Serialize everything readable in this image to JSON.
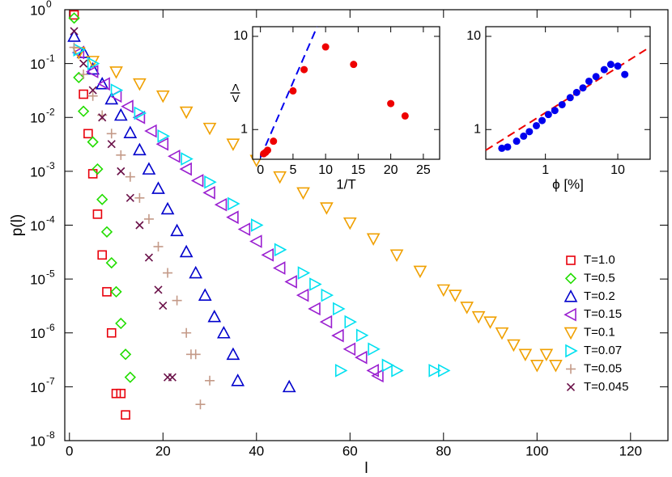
{
  "chart_data": [
    {
      "type": "scatter",
      "xlabel": "l",
      "ylabel": "p(l)",
      "xlim": [
        -1,
        128
      ],
      "ylim": [
        1e-08,
        1
      ],
      "ylog": true,
      "legend": "lower right",
      "xticks": [
        0,
        20,
        40,
        60,
        80,
        100,
        120
      ],
      "yticks": [
        {
          "value": 1,
          "label": "10",
          "power": "0"
        },
        {
          "value": 0.1,
          "label": "10",
          "power": "-1"
        },
        {
          "value": 0.01,
          "label": "10",
          "power": "-2"
        },
        {
          "value": 0.001,
          "label": "10",
          "power": "-3"
        },
        {
          "value": 0.0001,
          "label": "10",
          "power": "-4"
        },
        {
          "value": 1e-05,
          "label": "10",
          "power": "-5"
        },
        {
          "value": 1e-06,
          "label": "10",
          "power": "-6"
        },
        {
          "value": 1e-07,
          "label": "10",
          "power": "-7"
        },
        {
          "value": 1e-08,
          "label": "10",
          "power": "-8"
        }
      ],
      "series": [
        {
          "name": "T=1.0",
          "color": "#e8000b",
          "marker": "square",
          "x": [
            1,
            3,
            4,
            5,
            6,
            7,
            8,
            9,
            10,
            11,
            12
          ],
          "values": [
            0.8,
            0.027,
            0.005,
            0.0009,
            0.00016,
            2.8e-05,
            5.8e-06,
            1e-06,
            7.5e-08,
            7.5e-08,
            3e-08
          ]
        },
        {
          "name": "T=0.5",
          "color": "#22dd00",
          "marker": "diamond",
          "x": [
            1,
            2,
            3,
            5,
            6,
            7,
            8,
            9,
            10,
            11,
            12,
            13
          ],
          "values": [
            0.7,
            0.055,
            0.013,
            0.0035,
            0.0011,
            0.0003,
            7.5e-05,
            2e-05,
            5.8e-06,
            1.5e-06,
            4e-07,
            1.5e-07
          ]
        },
        {
          "name": "T=0.2",
          "color": "#0000cc",
          "marker": "up",
          "x": [
            1,
            3,
            5,
            7,
            9,
            11,
            13,
            15,
            17,
            19,
            21,
            23,
            25,
            27,
            29,
            31,
            33,
            35,
            36,
            47
          ],
          "values": [
            0.32,
            0.16,
            0.079,
            0.042,
            0.022,
            0.011,
            0.0052,
            0.0025,
            0.0011,
            0.00048,
            0.0002,
            7.9e-05,
            3.2e-05,
            1.3e-05,
            5e-06,
            2e-06,
            1e-06,
            4e-07,
            1.3e-07,
            1e-07
          ]
        },
        {
          "name": "T=0.15",
          "color": "#9a1fd0",
          "marker": "left",
          "x": [
            2,
            5,
            7.5,
            10,
            12.5,
            15,
            17.5,
            20,
            22.5,
            25,
            27.5,
            30,
            32.5,
            35,
            37.5,
            40,
            42.5,
            45,
            47.5,
            50,
            52.5,
            55,
            57.5,
            60,
            62.5,
            65,
            66
          ],
          "values": [
            0.16,
            0.071,
            0.042,
            0.025,
            0.016,
            0.01,
            0.0056,
            0.0032,
            0.0019,
            0.0011,
            0.00067,
            0.0004,
            0.00024,
            0.00014,
            8.4e-05,
            5e-05,
            2.8e-05,
            1.6e-05,
            8.9e-06,
            5e-06,
            2.8e-06,
            1.6e-06,
            8.9e-07,
            5e-07,
            3.5e-07,
            2e-07,
            1.6e-07
          ]
        },
        {
          "name": "T=0.1",
          "color": "#f0a000",
          "marker": "down",
          "x": [
            2,
            5,
            10,
            15,
            20,
            25,
            30,
            35,
            40,
            45,
            50,
            55,
            60,
            65,
            70,
            75,
            80,
            82.5,
            85,
            87.5,
            90,
            92.5,
            95,
            97.5,
            100,
            102,
            104
          ],
          "values": [
            0.16,
            0.11,
            0.07,
            0.042,
            0.025,
            0.0126,
            0.0063,
            0.0032,
            0.0016,
            0.00079,
            0.0004,
            0.00021,
            0.00011,
            5.6e-05,
            2.8e-05,
            1.4e-05,
            6.3e-06,
            5e-06,
            3e-06,
            2e-06,
            1.6e-06,
            1e-06,
            6e-07,
            4e-07,
            2.5e-07,
            4e-07,
            2.5e-07
          ]
        },
        {
          "name": "T=0.07",
          "color": "#00e0f0",
          "marker": "right",
          "x": [
            2,
            5,
            10,
            15,
            20,
            25,
            30,
            35,
            40,
            45,
            50,
            52.5,
            55,
            57.5,
            60,
            62.5,
            65,
            68,
            58,
            70,
            78,
            80
          ],
          "values": [
            0.18,
            0.1,
            0.032,
            0.012,
            0.0045,
            0.0017,
            0.00063,
            0.00025,
            0.0001,
            3.5e-05,
            1.3e-05,
            8e-06,
            5e-06,
            2.8e-06,
            1.6e-06,
            9e-07,
            5e-07,
            2.5e-07,
            2e-07,
            2e-07,
            2e-07,
            2e-07
          ]
        },
        {
          "name": "T=0.05",
          "color": "#c49a88",
          "marker": "plus",
          "x": [
            1,
            3,
            5,
            7,
            9,
            11,
            13,
            15,
            17,
            19,
            21,
            23,
            25,
            26,
            27,
            28,
            30
          ],
          "values": [
            0.2,
            0.063,
            0.025,
            0.011,
            0.005,
            0.002,
            0.00079,
            0.00032,
            0.00013,
            4e-05,
            1.3e-05,
            4e-06,
            1e-06,
            4e-07,
            4e-07,
            4.7e-08,
            1.3e-07
          ]
        },
        {
          "name": "T=0.045",
          "color": "#6a1048",
          "marker": "cross",
          "x": [
            1,
            3,
            5,
            7,
            9,
            11,
            13,
            15,
            17,
            19,
            20,
            21,
            22
          ],
          "values": [
            0.4,
            0.1,
            0.032,
            0.01,
            0.0032,
            0.001,
            0.00032,
            0.0001,
            2.5e-05,
            6.3e-06,
            3.2e-06,
            1.5e-07,
            1.5e-07
          ]
        }
      ]
    },
    {
      "type": "scatter",
      "xlabel": "1/T",
      "ylabel": "<l>",
      "xlim": [
        -1.2,
        27.5
      ],
      "ylim": [
        0.48,
        12.7
      ],
      "ylog": true,
      "xticks": [
        0,
        5,
        10,
        15,
        20,
        25
      ],
      "yticks": [
        1,
        10
      ],
      "series": [
        {
          "color": "#0000ee",
          "line": "dashed",
          "x": [
            0,
            8.7
          ],
          "values": [
            0.5,
            12.7
          ]
        },
        {
          "color": "#ee0000",
          "marker": "dot",
          "x": [
            0.5,
            0.8,
            1.1,
            2,
            5,
            6.7,
            10,
            14.3,
            20,
            22.2
          ],
          "values": [
            0.55,
            0.57,
            0.6,
            0.75,
            2.6,
            4.4,
            7.7,
            5,
            1.9,
            1.4
          ]
        }
      ]
    },
    {
      "type": "scatter",
      "xlabel": "ϕ [%]",
      "xlim": [
        0.15,
        28
      ],
      "ylim": [
        0.48,
        12.7
      ],
      "xlog": true,
      "ylog": true,
      "xticks": [
        1,
        10
      ],
      "yticks": [
        1,
        10
      ],
      "series": [
        {
          "color": "#ee0000",
          "line": "dashed",
          "x": [
            0.15,
            28
          ],
          "values": [
            0.6,
            7.7
          ]
        },
        {
          "color": "#0000ee",
          "marker": "dot",
          "x": [
            0.25,
            0.3,
            0.4,
            0.5,
            0.6,
            0.75,
            0.9,
            1.1,
            1.35,
            1.7,
            2.2,
            2.7,
            3.3,
            4,
            5,
            6.5,
            8,
            10,
            12.5
          ],
          "values": [
            0.63,
            0.65,
            0.75,
            0.85,
            0.95,
            1.1,
            1.25,
            1.45,
            1.6,
            1.85,
            2.2,
            2.5,
            2.8,
            3.3,
            3.7,
            4.4,
            5,
            4.8,
            3.9
          ]
        }
      ]
    }
  ]
}
